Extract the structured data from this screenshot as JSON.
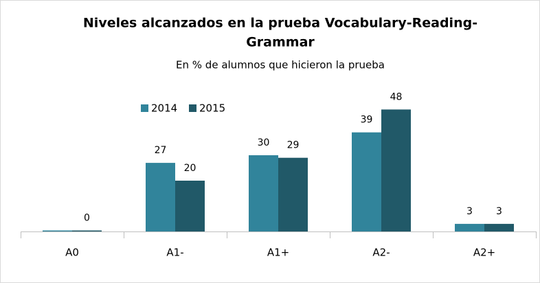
{
  "chart_data": {
    "type": "bar",
    "title": "Niveles alcanzados en la prueba Vocabulary-Reading-Grammar",
    "title_lines": [
      "Niveles alcanzados en la prueba Vocabulary-Reading-",
      "Grammar"
    ],
    "subtitle": "En % de alumnos que hicieron la prueba",
    "categories": [
      "A0",
      "A1-",
      "A1+",
      "A2-",
      "A2+"
    ],
    "series": [
      {
        "name": "2014",
        "color": "#31849b",
        "values": [
          0,
          27,
          30,
          39,
          3
        ],
        "value_labels": [
          null,
          "27",
          "30",
          "39",
          "3"
        ]
      },
      {
        "name": "2015",
        "color": "#215968",
        "values": [
          0,
          20,
          29,
          48,
          3
        ]
      }
    ],
    "ylim": [
      0,
      50
    ],
    "legend": "top-left"
  }
}
